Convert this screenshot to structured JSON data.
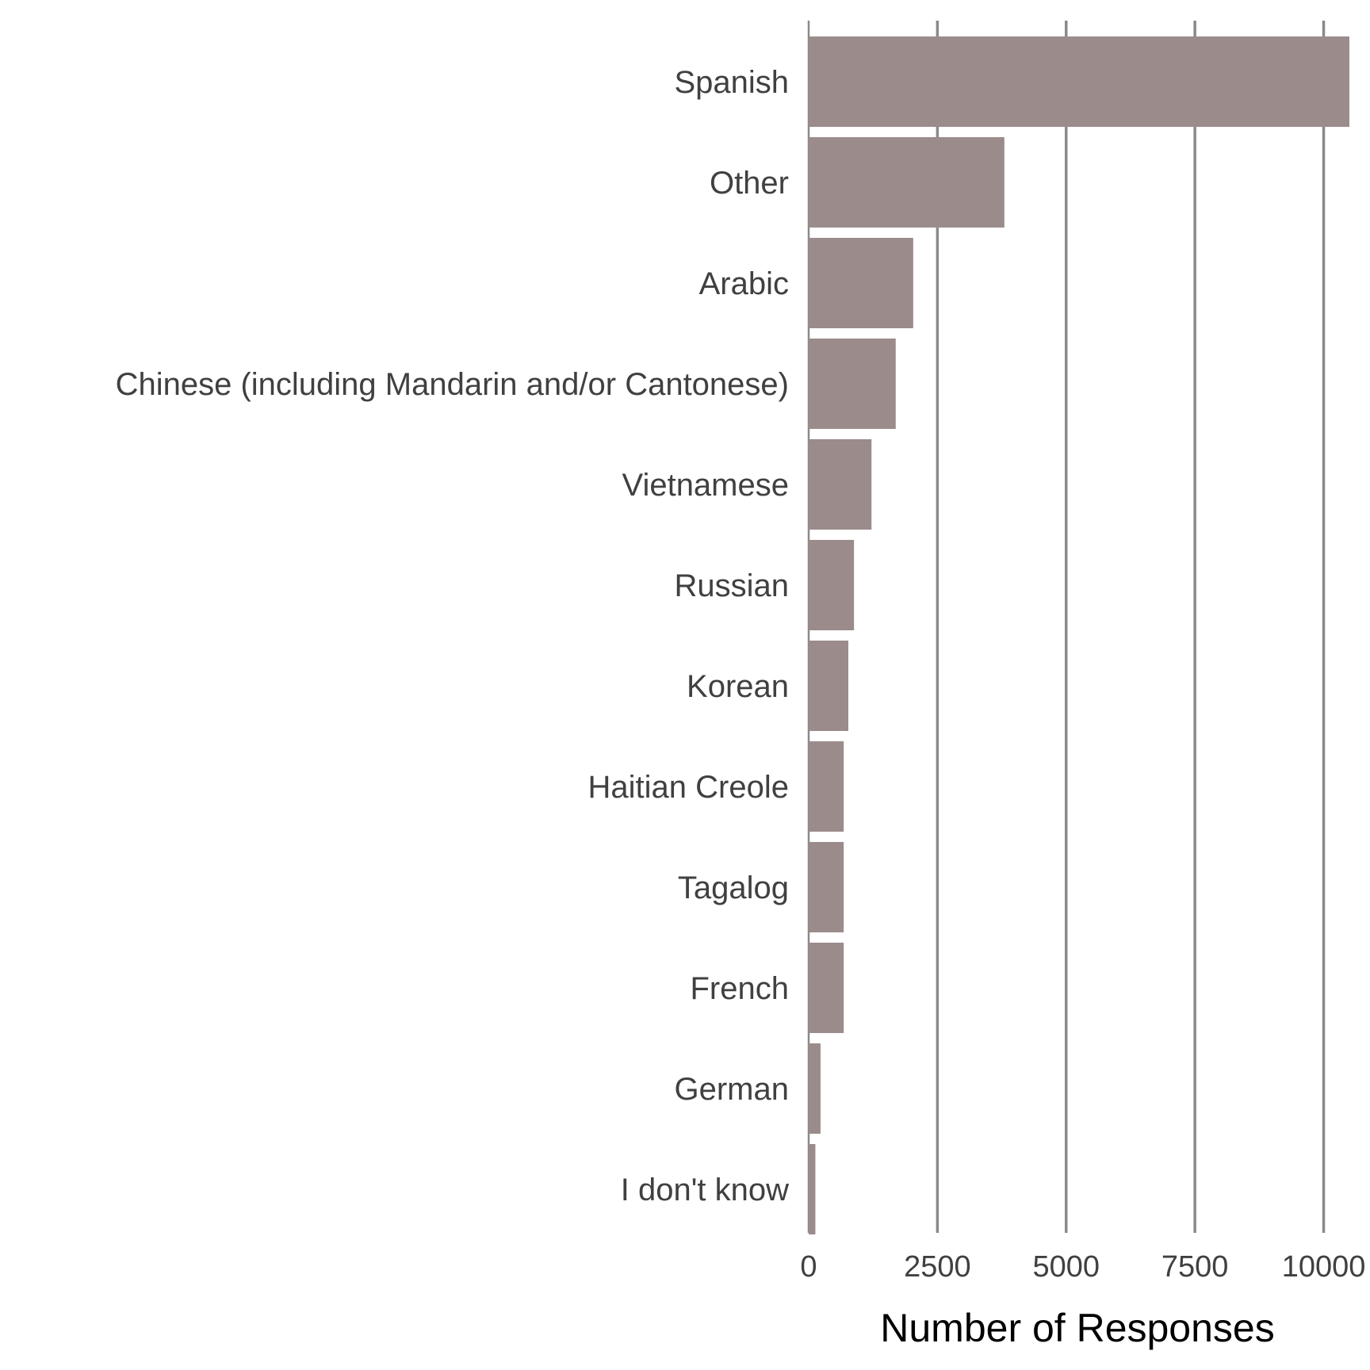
{
  "chart_data": {
    "type": "bar",
    "orientation": "horizontal",
    "categories": [
      "Spanish",
      "Other",
      "Arabic",
      "Chinese (including Mandarin and/or Cantonese)",
      "Vietnamese",
      "Russian",
      "Korean",
      "Haitian Creole",
      "Tagalog",
      "French",
      "German",
      "I don't know"
    ],
    "values": [
      10500,
      3800,
      2030,
      1690,
      1220,
      880,
      770,
      680,
      680,
      680,
      230,
      130
    ],
    "xlabel": "Number of Responses",
    "ylabel": "",
    "xlim": [
      0,
      10500
    ],
    "xticks": [
      0,
      2500,
      5000,
      7500,
      10000
    ],
    "xtick_labels": [
      "0",
      "2500",
      "5000",
      "7500",
      "10000"
    ],
    "grid": "vertical",
    "legend": "none",
    "colors": {
      "bar": "#9b8b8b",
      "grid": "#8a8a8a",
      "label": "#404040",
      "title": "#000000"
    }
  }
}
